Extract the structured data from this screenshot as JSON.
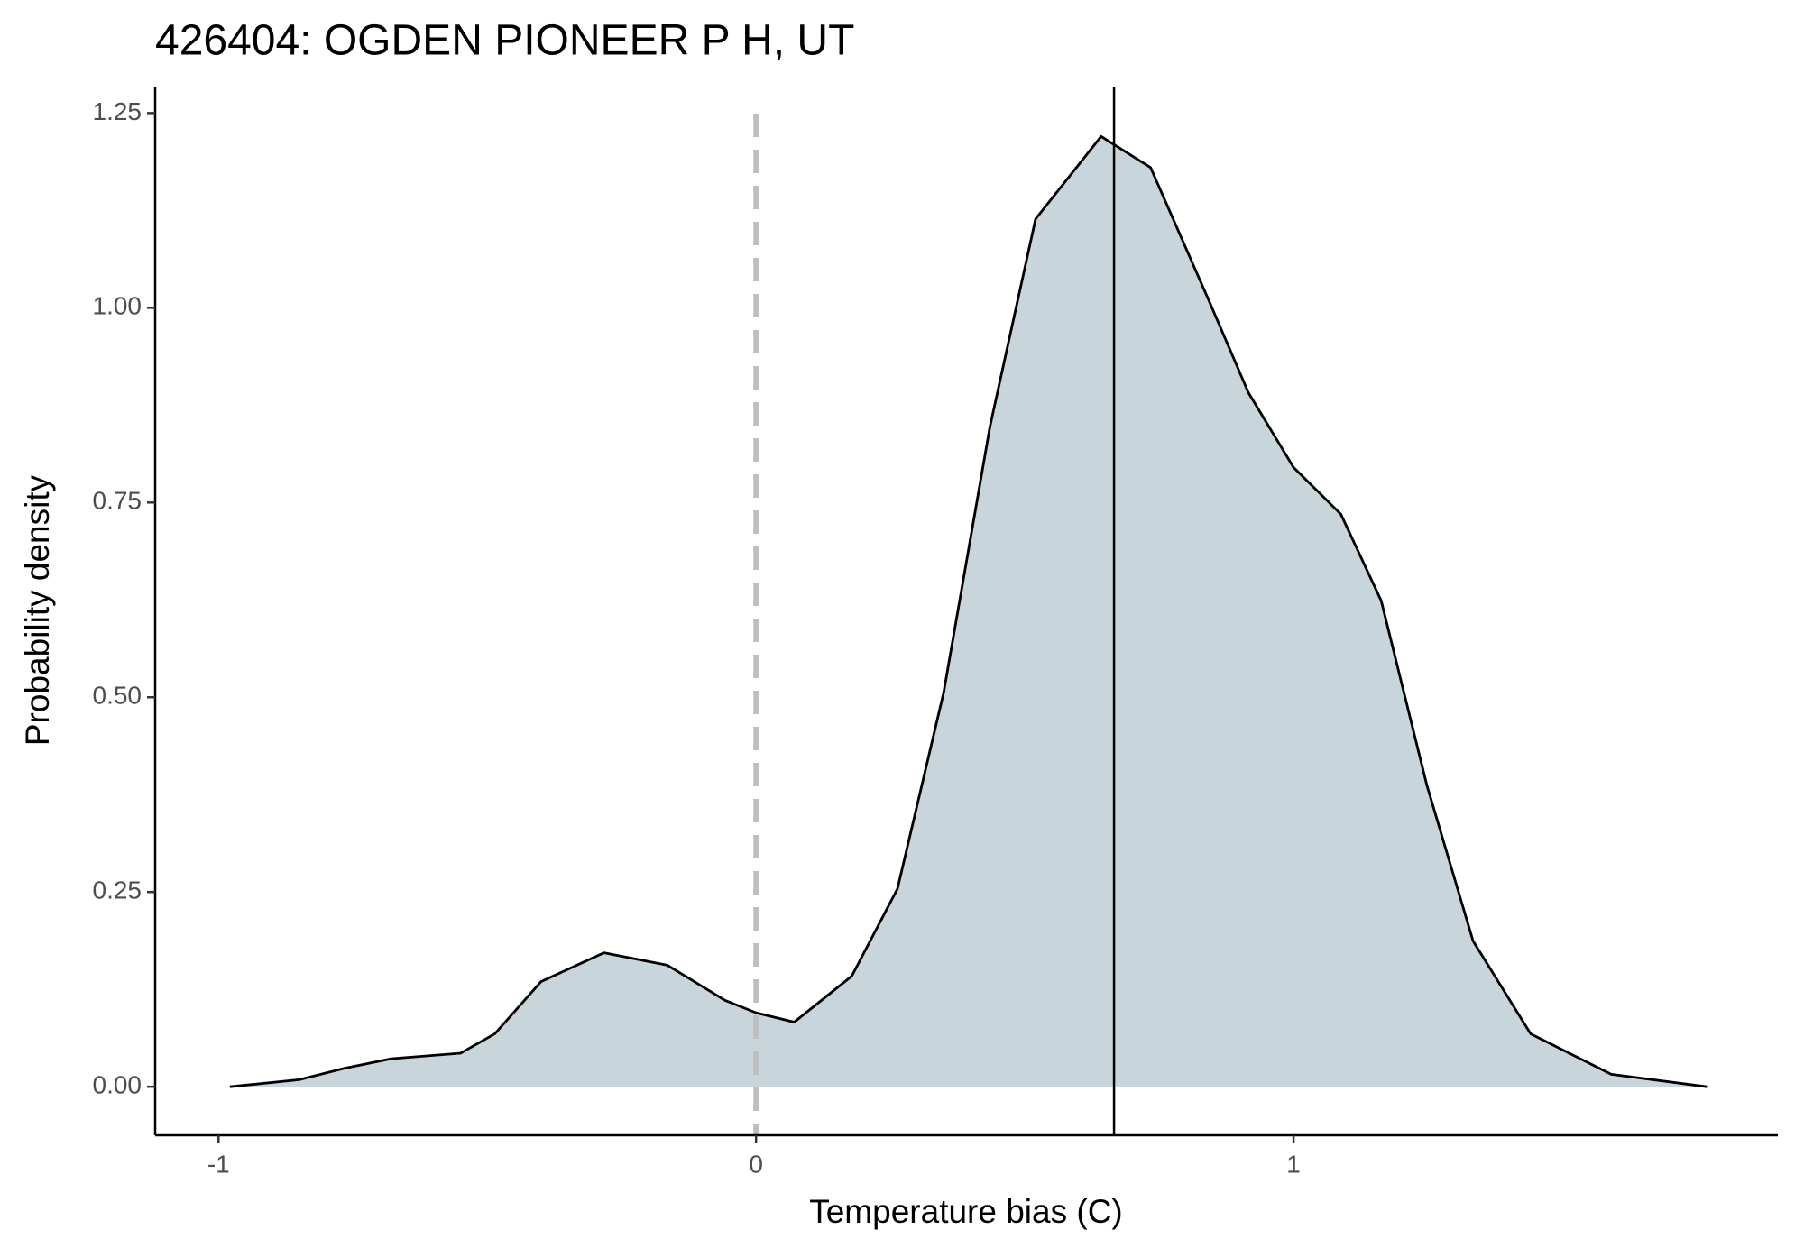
{
  "chart_data": {
    "type": "density",
    "title": "426404: OGDEN PIONEER P H, UT",
    "x_label": "Temperature bias (C)",
    "y_label": "Probability density",
    "x": [
      -0.979,
      -0.85,
      -0.764,
      -0.679,
      -0.55,
      -0.486,
      -0.4,
      -0.283,
      -0.165,
      -0.058,
      0,
      0.071,
      0.178,
      0.263,
      0.349,
      0.435,
      0.52,
      0.642,
      0.734,
      0.842,
      0.916,
      1.0,
      1.088,
      1.163,
      1.248,
      1.334,
      1.441,
      1.591,
      1.769
    ],
    "values": [
      0.0,
      0.009,
      0.024,
      0.036,
      0.043,
      0.068,
      0.135,
      0.172,
      0.156,
      0.111,
      0.095,
      0.083,
      0.142,
      0.254,
      0.506,
      0.847,
      1.114,
      1.22,
      1.18,
      1.01,
      0.891,
      0.795,
      0.735,
      0.624,
      0.387,
      0.187,
      0.068,
      0.016,
      0.0
    ],
    "fill_color": "#c8d5db",
    "line_color": "#000000",
    "reference_lines": [
      {
        "x": 0,
        "style": "dashed",
        "color": "#bebebe"
      },
      {
        "x": 0.666,
        "style": "solid",
        "color": "#000000"
      }
    ],
    "xlim": [
      -1.118,
      1.901
    ],
    "xticks": [
      -1,
      0,
      1
    ],
    "ylim": [
      -0.0623,
      1.284
    ],
    "yticks": [
      {
        "value": 0,
        "label": "0.00"
      },
      {
        "value": 0.25,
        "label": "0.25"
      },
      {
        "value": 0.5,
        "label": "0.50"
      },
      {
        "value": 0.75,
        "label": "0.75"
      },
      {
        "value": 1,
        "label": "1.00"
      },
      {
        "value": 1.25,
        "label": "1.25"
      }
    ]
  }
}
